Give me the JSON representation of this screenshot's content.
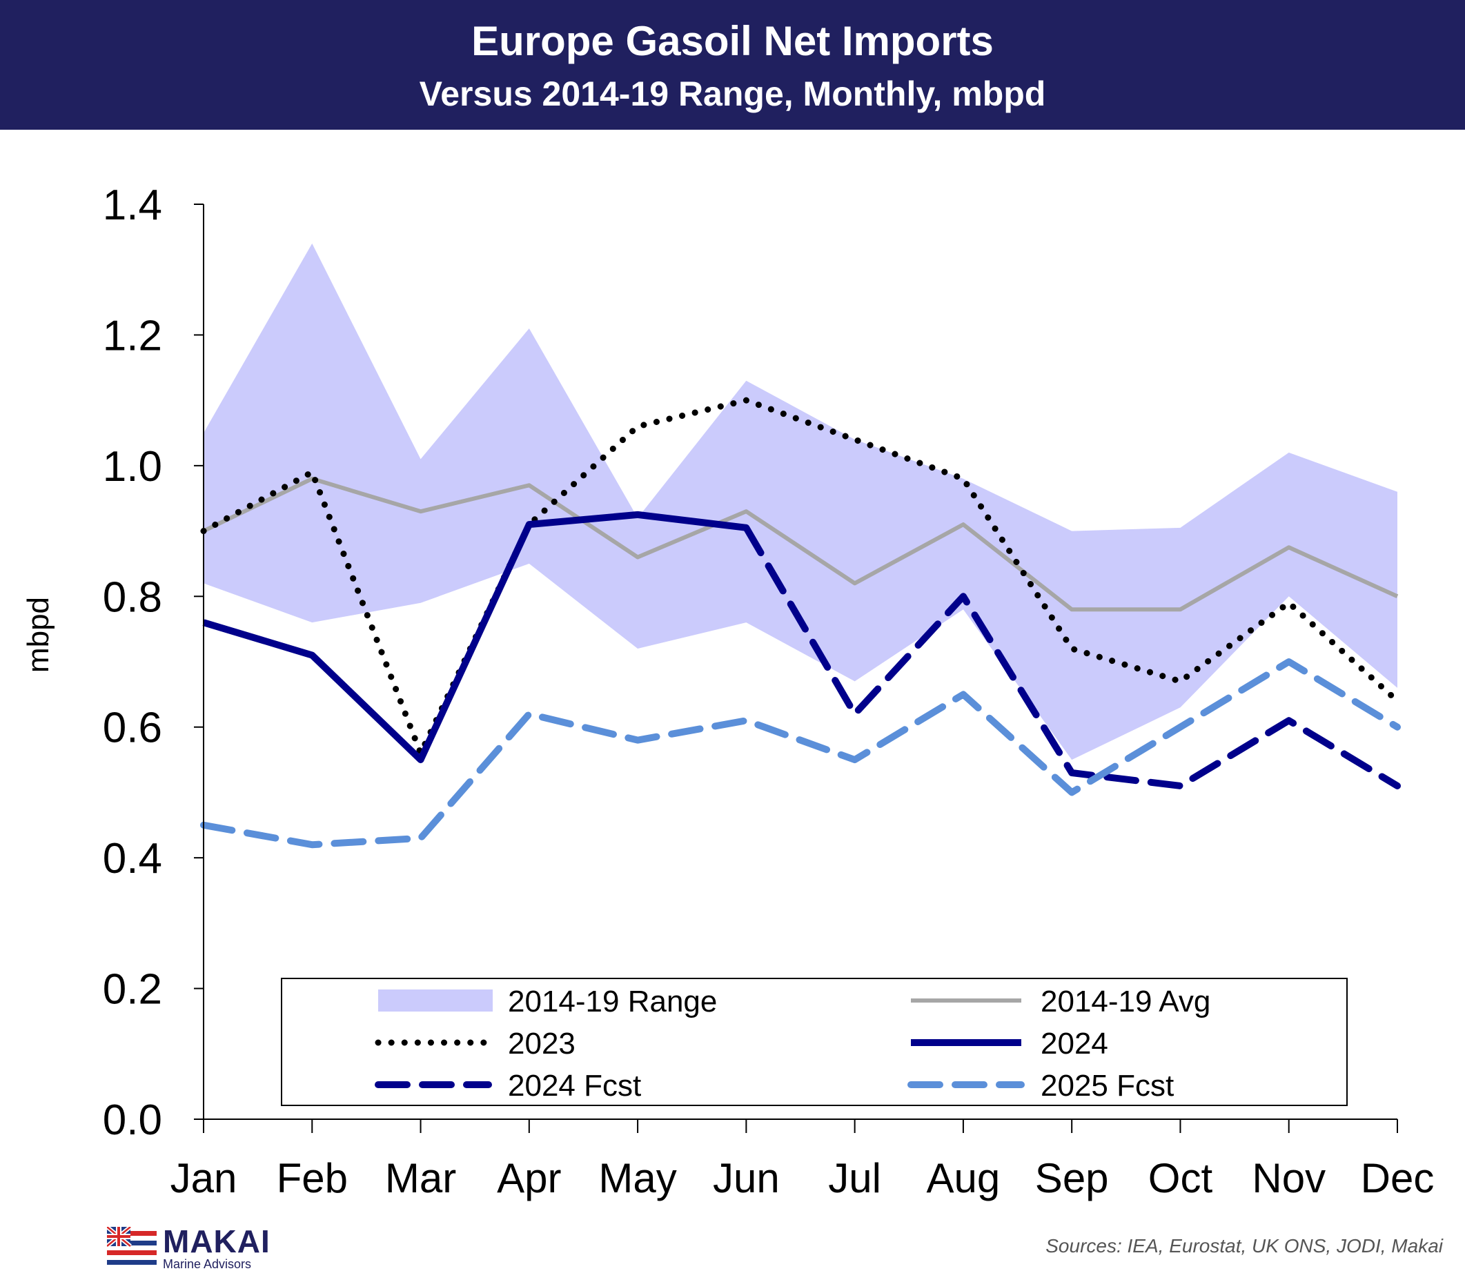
{
  "header": {
    "title": "Europe Gasoil Net Imports",
    "subtitle": "Versus 2014-19 Range, Monthly, mbpd"
  },
  "chart_data": {
    "type": "line",
    "title": "Europe Gasoil Net Imports",
    "subtitle": "Versus 2014-19 Range, Monthly, mbpd",
    "xlabel": "",
    "ylabel": "mbpd",
    "ylim": [
      0,
      1.4
    ],
    "yticks": [
      "0.0",
      "0.2",
      "0.4",
      "0.6",
      "0.8",
      "1.0",
      "1.2",
      "1.4"
    ],
    "categories": [
      "Jan",
      "Feb",
      "Mar",
      "Apr",
      "May",
      "Jun",
      "Jul",
      "Aug",
      "Sep",
      "Oct",
      "Nov",
      "Dec"
    ],
    "legend_position": "bottom-inside",
    "range": {
      "name": "2014-19 Range",
      "color": "#cbcbfc",
      "min": [
        0.82,
        0.76,
        0.79,
        0.85,
        0.72,
        0.76,
        0.67,
        0.78,
        0.55,
        0.63,
        0.8,
        0.66
      ],
      "max": [
        1.05,
        1.34,
        1.01,
        1.21,
        0.92,
        1.13,
        1.04,
        0.98,
        0.9,
        0.905,
        1.02,
        0.96
      ]
    },
    "series": [
      {
        "name": "2014-19 Avg",
        "style": "solid-gray",
        "color": "#a6a6a6",
        "values": [
          0.9,
          0.98,
          0.93,
          0.97,
          0.86,
          0.93,
          0.82,
          0.91,
          0.78,
          0.78,
          0.875,
          0.8
        ]
      },
      {
        "name": "2023",
        "style": "dotted",
        "color": "#000000",
        "values": [
          0.9,
          0.99,
          0.56,
          0.91,
          1.06,
          1.1,
          1.04,
          0.98,
          0.72,
          0.67,
          0.79,
          0.64
        ]
      },
      {
        "name": "2024",
        "style": "solid",
        "color": "#00008b",
        "values": [
          0.76,
          0.71,
          0.55,
          0.91,
          0.925,
          0.905,
          null,
          null,
          null,
          null,
          null,
          null
        ]
      },
      {
        "name": "2024 Fcst",
        "style": "dashed",
        "color": "#00008b",
        "values": [
          null,
          null,
          null,
          null,
          null,
          0.905,
          0.62,
          0.8,
          0.53,
          0.51,
          0.61,
          0.51
        ]
      },
      {
        "name": "2025 Fcst",
        "style": "dashed-light",
        "color": "#5b8fd9",
        "values": [
          0.45,
          0.42,
          0.43,
          0.62,
          0.58,
          0.61,
          0.55,
          0.65,
          0.5,
          0.6,
          0.7,
          0.6
        ]
      }
    ]
  },
  "footer": {
    "logo_brand": "MAKAI",
    "logo_tagline": "Marine Advisors",
    "sources": "Sources: IEA, Eurostat, UK ONS, JODI, Makai"
  }
}
